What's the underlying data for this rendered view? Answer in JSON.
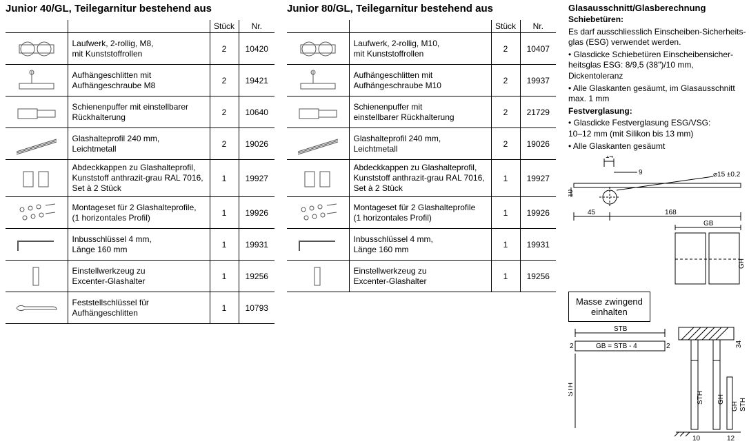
{
  "left": {
    "title": "Junior 40/GL, Teilegarnitur bestehend aus",
    "headers": {
      "qty": "Stück",
      "num": "Nr."
    },
    "rows": [
      {
        "desc": "Laufwerk, 2-rollig, M8,\nmit Kunststoffrollen",
        "qty": "2",
        "num": "10420"
      },
      {
        "desc": "Aufhängeschlitten mit\nAufhängeschraube M8",
        "qty": "2",
        "num": "19421"
      },
      {
        "desc": "Schienenpuffer mit einstellbarer\nRückhalterung",
        "qty": "2",
        "num": "10640"
      },
      {
        "desc": "Glashalteprofil 240 mm,\nLeichtmetall",
        "qty": "2",
        "num": "19026"
      },
      {
        "desc": "Abdeckkappen zu Glashalteprofil,\nKunststoff anthrazit-grau RAL 7016,\nSet à 2 Stück",
        "qty": "1",
        "num": "19927"
      },
      {
        "desc": "Montageset für 2 Glashalteprofile,\n(1 horizontales Profil)",
        "qty": "1",
        "num": "19926"
      },
      {
        "desc": "Inbusschlüssel 4 mm,\nLänge 160 mm",
        "qty": "1",
        "num": "19931"
      },
      {
        "desc": "Einstellwerkzeug zu\nExcenter-Glashalter",
        "qty": "1",
        "num": "19256"
      },
      {
        "desc": "Feststellschlüssel für\nAufhängeschlitten",
        "qty": "1",
        "num": "10793"
      }
    ]
  },
  "mid": {
    "title": "Junior 80/GL, Teilegarnitur bestehend aus",
    "headers": {
      "qty": "Stück",
      "num": "Nr."
    },
    "rows": [
      {
        "desc": "Laufwerk, 2-rollig, M10,\nmit Kunststoffrollen",
        "qty": "2",
        "num": "10407"
      },
      {
        "desc": "Aufhängeschlitten mit\nAufhängeschraube M10",
        "qty": "2",
        "num": "19937"
      },
      {
        "desc": "Schienenpuffer mit\neinstellbarer Rückhalterung",
        "qty": "2",
        "num": "21729"
      },
      {
        "desc": "Glashalteprofil 240 mm,\nLeichtmetall",
        "qty": "2",
        "num": "19026"
      },
      {
        "desc": "Abdeckkappen zu Glashalteprofil,\nKunststoff anthrazit-grau RAL 7016,\nSet à 2 Stück",
        "qty": "1",
        "num": "19927"
      },
      {
        "desc": "Montageset für 2 Glashalteprofile\n(1 horizontales Profil)",
        "qty": "1",
        "num": "19926"
      },
      {
        "desc": "Inbusschlüssel 4 mm,\nLänge 160 mm",
        "qty": "1",
        "num": "19931"
      },
      {
        "desc": "Einstellwerkzeug zu\nExcenter-Glashalter",
        "qty": "1",
        "num": "19256"
      }
    ]
  },
  "right": {
    "title": "Glasausschnitt/Glasberechnung",
    "schiebeturen_h": "Schiebetüren:",
    "p1": "Es darf ausschliesslich Einscheiben-Sicherheits-glas (ESG) verwendet werden.",
    "p2": "• Glasdicke Schiebetüren Einscheibensicher-heitsglas ESG: 8/9,5 (38\")/10 mm, Dickentoleranz",
    "p3": "• Alle Glaskanten gesäumt, im Glasausschnitt max. 1 mm",
    "festverglasung_h": "Festverglasung:",
    "p4": "• Glasdicke Festverglasung ESG/VSG:\n  10–12 mm (mit Silikon bis 13 mm)",
    "p5": "• Alle Glaskanten gesäumt",
    "note": "Masse zwingend\neinhalten",
    "dims": {
      "d14": "14",
      "d9": "9",
      "d10v": "10",
      "d45": "45",
      "d168": "168",
      "d15": "⌀15 ±0.2",
      "gb": "GB",
      "gh": "GH",
      "stb": "STB",
      "gbeq": "GB = STB - 4",
      "d2l": "2",
      "d2r": "2",
      "sth": "STH",
      "d34": "34",
      "d10b": "10",
      "d12": "12"
    }
  }
}
